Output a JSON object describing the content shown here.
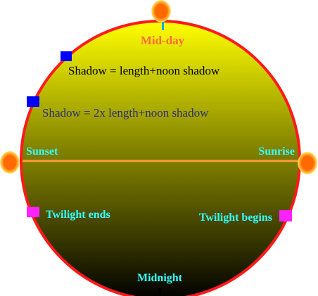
{
  "diagram": {
    "labels": {
      "midday": "Mid-day",
      "shadow_1": "Shadow = length+noon shadow",
      "shadow_2": "Shadow = 2x length+noon shadow",
      "sunset": "Sunset",
      "sunrise": "Sunrise",
      "twilight_ends": "Twilight ends",
      "twilight_begins": "Twilight begins",
      "midnight": "Midnight"
    },
    "colors": {
      "rim": "#ff1a1a",
      "sky_top": "#ffff00",
      "sky_horizon": "#7a7a00",
      "night_bottom": "#000000",
      "horizon_line": "#ff9a3c",
      "sun": "#ff6a00",
      "sun_glow": "#ffd24a",
      "midday_label": "#ff6a3c",
      "shadow_1_label": "#000000",
      "shadow_2_label": "#2e2e6e",
      "horizon_labels": "#33ffff",
      "shadow_marker": "#0000ff",
      "twilight_marker": "#ff22ff",
      "midday_tick": "#00aaff",
      "midnight_tick": "#000000"
    },
    "icons": [
      "sun-icon",
      "marker-square"
    ]
  }
}
